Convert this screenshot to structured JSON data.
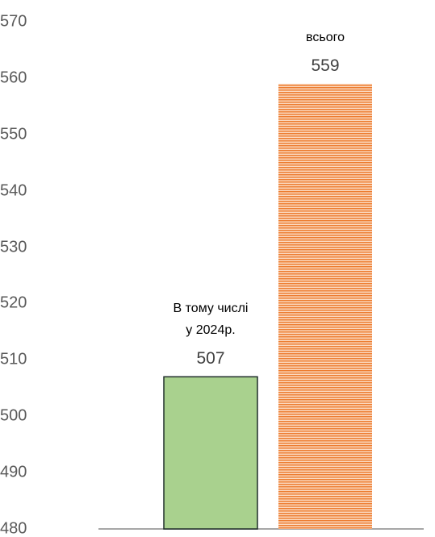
{
  "chart_data": {
    "type": "bar",
    "categories": [
      "В тому числі\nу 2024р.",
      "всього"
    ],
    "values": [
      507,
      559
    ],
    "colors": [
      "#a9d18e",
      "#f4b183"
    ],
    "ylim": [
      480,
      570
    ],
    "yticks": [
      480,
      490,
      500,
      510,
      520,
      530,
      540,
      550,
      560,
      570
    ]
  }
}
